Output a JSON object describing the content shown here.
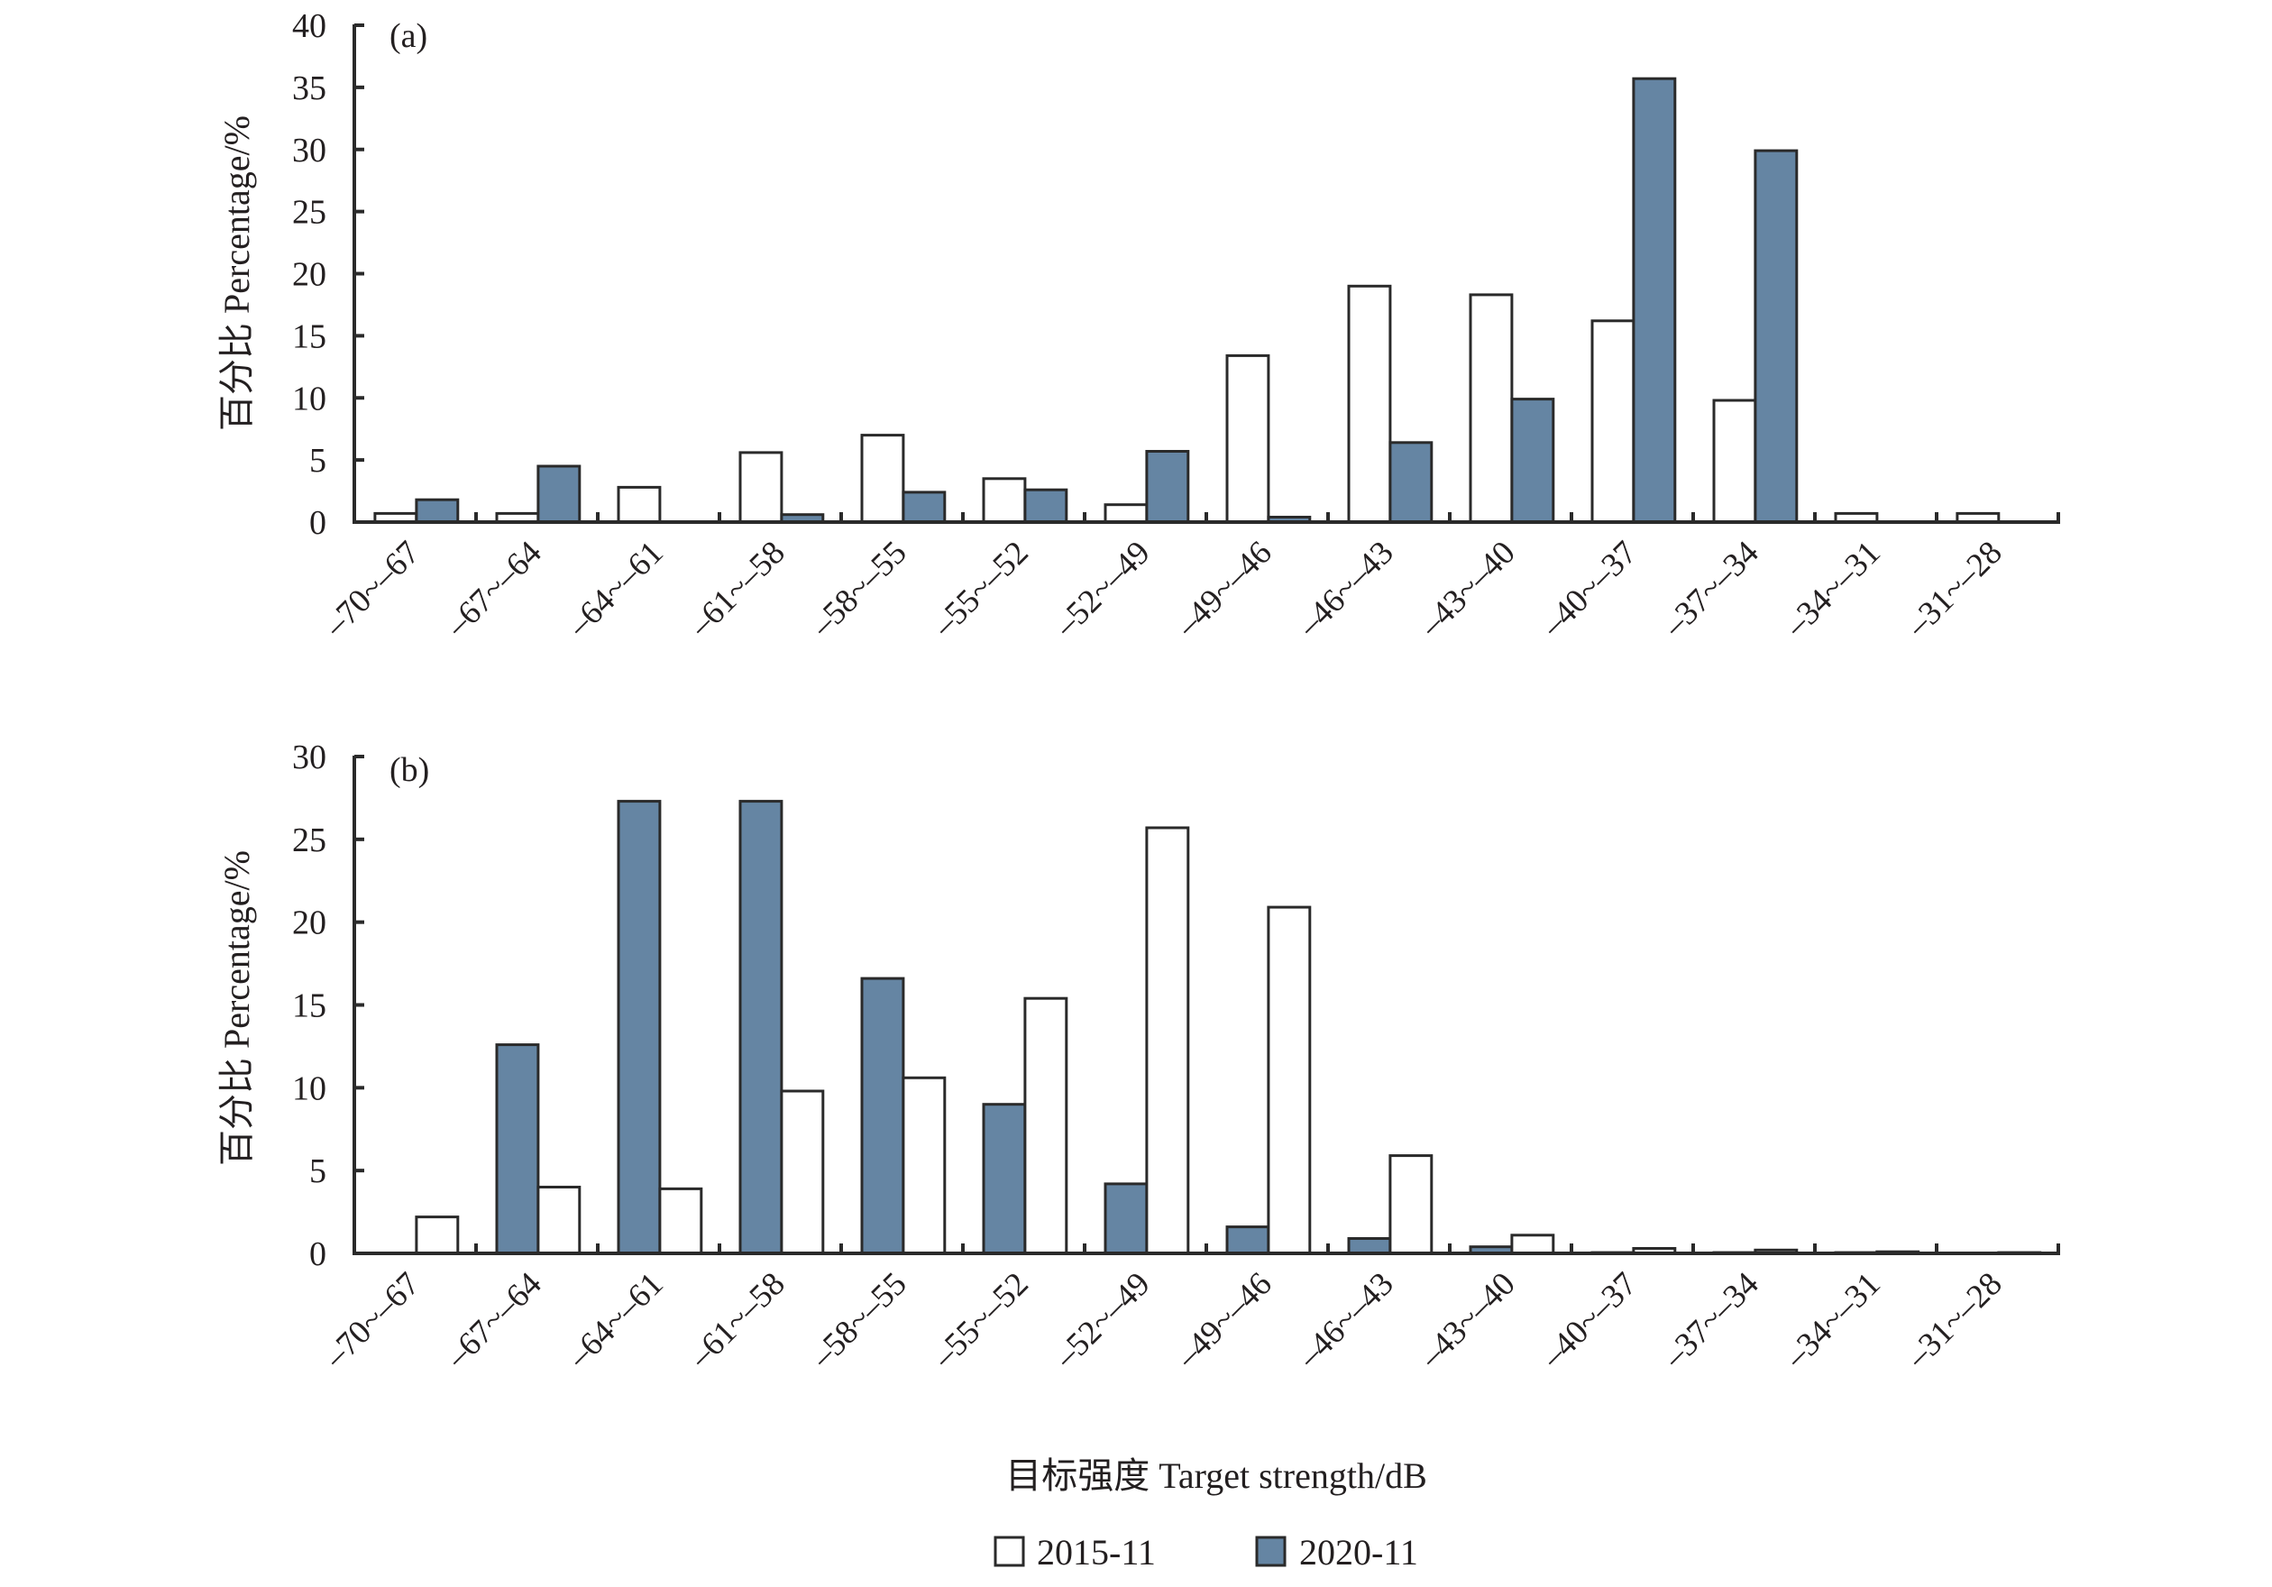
{
  "chart_data": [
    {
      "type": "bar",
      "panel_label": "(a)",
      "ylabel": "百分比 Percentage/%",
      "xlabel": "",
      "ylim": [
        0,
        40
      ],
      "yticks": [
        "0",
        "5",
        "10",
        "15",
        "20",
        "25",
        "30",
        "35",
        "40"
      ],
      "categories": [
        "–70~–67",
        "–67~–64",
        "–64~–61",
        "–61~–58",
        "–58~–55",
        "–55~–52",
        "–52~–49",
        "–49~–46",
        "–46~–43",
        "–43~–40",
        "–40~–37",
        "–37~–34",
        "–34~–31",
        "–31~–28"
      ],
      "bar_order": [
        "2015-11",
        "2020-11"
      ],
      "series": [
        {
          "name": "2015-11",
          "values": [
            0.7,
            0.7,
            2.8,
            5.6,
            7.0,
            3.5,
            1.4,
            13.4,
            19.0,
            18.3,
            16.2,
            9.8,
            0.7,
            0.7
          ]
        },
        {
          "name": "2020-11",
          "values": [
            1.8,
            4.5,
            0,
            0.6,
            2.4,
            2.6,
            5.7,
            0.4,
            6.4,
            9.9,
            35.7,
            29.9,
            0,
            0
          ]
        }
      ],
      "grid": false
    },
    {
      "type": "bar",
      "panel_label": "(b)",
      "ylabel": "百分比 Percentage/%",
      "xlabel": "目标强度 Target strength/dB",
      "ylim": [
        0,
        30
      ],
      "yticks": [
        "0",
        "5",
        "10",
        "15",
        "20",
        "25",
        "30"
      ],
      "categories": [
        "–70~–67",
        "–67~–64",
        "–64~–61",
        "–61~–58",
        "–58~–55",
        "–55~–52",
        "–52~–49",
        "–49~–46",
        "–46~–43",
        "–43~–40",
        "–40~–37",
        "–37~–34",
        "–34~–31",
        "–31~–28"
      ],
      "bar_order": [
        "2020-11",
        "2015-11"
      ],
      "series": [
        {
          "name": "2015-11",
          "values": [
            2.2,
            4.0,
            3.9,
            9.8,
            10.6,
            15.4,
            25.7,
            20.9,
            5.9,
            1.1,
            0.3,
            0.2,
            0.1,
            0.05
          ]
        },
        {
          "name": "2020-11",
          "values": [
            0,
            12.6,
            27.3,
            27.3,
            16.6,
            9.0,
            4.2,
            1.6,
            0.9,
            0.4,
            0.05,
            0.05,
            0.05,
            0
          ]
        }
      ],
      "grid": false
    }
  ],
  "legend": {
    "placement": "bottom-center",
    "items": [
      {
        "label": "2015-11",
        "color": "#ffffff"
      },
      {
        "label": "2020-11",
        "color": "#6585a3"
      }
    ]
  },
  "colors": {
    "2015-11": "#ffffff",
    "2020-11": "#6585a3",
    "stroke": "#2a2a2a",
    "text": "#231f20"
  }
}
